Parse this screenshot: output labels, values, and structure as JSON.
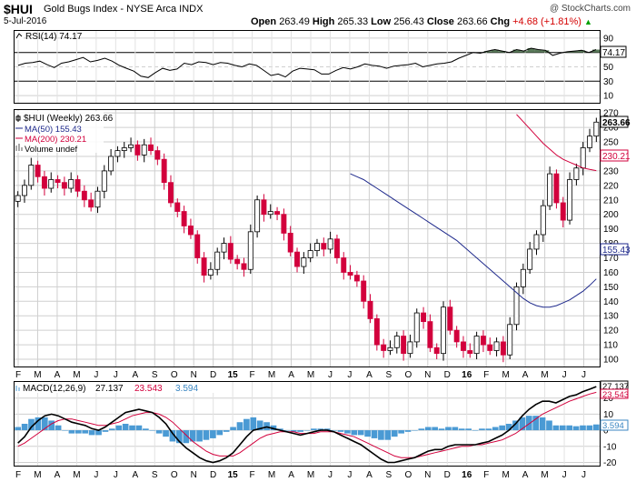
{
  "header": {
    "ticker": "$HUI",
    "name": "Gold Bugs Index - NYSE Arca INDX",
    "date": "5-Jul-2016",
    "open_label": "Open",
    "open": "263.49",
    "high_label": "High",
    "high": "265.33",
    "low_label": "Low",
    "low": "256.43",
    "close_label": "Close",
    "close": "263.66",
    "chg_label": "Chg",
    "chg": "+4.68 (+1.81%)",
    "chg_icon": "up-triangle-icon",
    "copyright": "@ StockCharts.com"
  },
  "colors": {
    "up": "#000000",
    "down": "#d2003c",
    "ma50": "#1f2a8c",
    "ma200": "#d2003c",
    "macd": "#000000",
    "signal": "#d2003c",
    "hist": "#4a9ad4",
    "rsi": "#000000"
  },
  "months": [
    "F",
    "M",
    "A",
    "M",
    "J",
    "J",
    "A",
    "S",
    "O",
    "N",
    "D",
    "15",
    "F",
    "M",
    "A",
    "M",
    "J",
    "J",
    "A",
    "S",
    "O",
    "N",
    "D",
    "16",
    "F",
    "M",
    "A",
    "M",
    "J",
    "J"
  ],
  "rsi": {
    "legend": "RSI(14) 74.17",
    "last": "74.17",
    "ticks": [
      "90",
      "70",
      "50",
      "30",
      "10"
    ],
    "levels": [
      70,
      30
    ],
    "ylim": [
      0,
      100
    ],
    "values": [
      52,
      55,
      56,
      58,
      53,
      49,
      55,
      57,
      60,
      63,
      57,
      59,
      62,
      58,
      52,
      48,
      44,
      37,
      35,
      42,
      48,
      45,
      47,
      55,
      53,
      57,
      56,
      53,
      56,
      55,
      52,
      50,
      54,
      52,
      45,
      38,
      40,
      36,
      44,
      48,
      47,
      46,
      40,
      40,
      45,
      49,
      47,
      50,
      54,
      52,
      51,
      48,
      51,
      52,
      53,
      55,
      50,
      52,
      54,
      55,
      57,
      62,
      66,
      70,
      69,
      72,
      74,
      72,
      70,
      74,
      72,
      76,
      74,
      73,
      66,
      69,
      71,
      72,
      73,
      70,
      74
    ]
  },
  "chart_data": {
    "type": "candlestick",
    "title": "$HUI (Weekly) 263.66",
    "legend": [
      {
        "name": "$HUI (Weekly) 263.66",
        "icon": "candlestick-icon"
      },
      {
        "name": "MA(50) 155.43",
        "color": "#1f2a8c"
      },
      {
        "name": "MA(200) 230.21",
        "color": "#d2003c"
      },
      {
        "name": "Volume undef",
        "icon": "volume-bar-icon"
      }
    ],
    "ylim": [
      95,
      272
    ],
    "y_ticks": [
      270,
      260,
      250,
      240,
      230,
      220,
      210,
      200,
      190,
      180,
      170,
      160,
      150,
      140,
      130,
      120,
      110,
      100
    ],
    "last_labels": {
      "price": "263.66",
      "ma200": "230.21",
      "ma50": "155.43"
    },
    "x_start": "2014-01",
    "x_end": "2016-07-05",
    "closes": [
      213,
      220,
      234,
      226,
      218,
      224,
      222,
      218,
      224,
      216,
      210,
      205,
      216,
      230,
      240,
      244,
      246,
      248,
      241,
      248,
      244,
      238,
      222,
      208,
      202,
      192,
      186,
      170,
      158,
      162,
      174,
      180,
      169,
      166,
      162,
      188,
      210,
      200,
      202,
      200,
      187,
      174,
      164,
      170,
      175,
      180,
      176,
      183,
      170,
      160,
      158,
      154,
      140,
      128,
      110,
      106,
      108,
      116,
      104,
      112,
      132,
      126,
      108,
      104,
      136,
      120,
      112,
      106,
      104,
      116,
      110,
      106,
      112,
      103,
      124,
      150,
      162,
      176,
      186,
      206,
      228,
      208,
      196,
      224,
      232,
      246,
      254,
      263.66
    ],
    "ma50": [
      null,
      null,
      null,
      null,
      null,
      null,
      null,
      null,
      null,
      null,
      null,
      null,
      null,
      null,
      null,
      null,
      null,
      null,
      null,
      null,
      null,
      null,
      null,
      null,
      null,
      null,
      null,
      null,
      null,
      null,
      null,
      null,
      null,
      null,
      null,
      null,
      null,
      null,
      null,
      null,
      null,
      null,
      null,
      null,
      null,
      null,
      null,
      null,
      null,
      null,
      228,
      226,
      224,
      221,
      218,
      215,
      212,
      209,
      206,
      203,
      200,
      197,
      194,
      191,
      188,
      185,
      182,
      178,
      174,
      170,
      166,
      162,
      158,
      154,
      150,
      146,
      142,
      139,
      137,
      136,
      136,
      137,
      139,
      141,
      144,
      147,
      151,
      155.43
    ],
    "ma200": [
      null,
      null,
      null,
      null,
      null,
      null,
      null,
      null,
      null,
      null,
      null,
      null,
      null,
      null,
      null,
      null,
      null,
      null,
      null,
      null,
      null,
      null,
      null,
      null,
      null,
      null,
      null,
      null,
      null,
      null,
      null,
      null,
      null,
      null,
      null,
      null,
      null,
      null,
      null,
      null,
      null,
      null,
      null,
      null,
      null,
      null,
      null,
      null,
      null,
      null,
      null,
      null,
      null,
      null,
      null,
      null,
      null,
      null,
      null,
      null,
      null,
      null,
      null,
      null,
      null,
      null,
      null,
      null,
      null,
      null,
      null,
      null,
      null,
      null,
      null,
      269,
      264,
      259,
      254,
      249,
      245,
      241,
      238,
      236,
      234,
      232,
      231,
      230.21
    ]
  },
  "macd": {
    "legend_label": "MACD(12,26,9)",
    "macd_val": "27.137",
    "signal_val": "23.543",
    "hist_val": "3.594",
    "ticks": [
      "20",
      "10",
      "0",
      "-10",
      "-20"
    ],
    "ylim": [
      -22,
      30
    ],
    "macd": [
      -8,
      -4,
      2,
      6,
      9,
      10,
      9,
      7,
      5,
      4,
      3,
      1,
      0,
      2,
      5,
      8,
      11,
      12,
      13,
      12,
      11,
      8,
      4,
      -2,
      -7,
      -11,
      -14,
      -17,
      -19,
      -20,
      -19,
      -17,
      -14,
      -9,
      -4,
      0,
      1,
      2,
      1,
      0,
      -1,
      -2,
      -3,
      -2,
      -1,
      0,
      0,
      -1,
      -3,
      -5,
      -7,
      -9,
      -12,
      -15,
      -18,
      -20,
      -20,
      -19,
      -18,
      -17,
      -15,
      -13,
      -12,
      -12,
      -10,
      -9,
      -9,
      -9,
      -9,
      -8,
      -7,
      -5,
      -3,
      0,
      4,
      9,
      13,
      16,
      18,
      18,
      17,
      19,
      21,
      22,
      24,
      25.5,
      27.137
    ],
    "signal": [
      -10,
      -8,
      -5,
      -2,
      1,
      4,
      6,
      7,
      7,
      6,
      5,
      4,
      3,
      3,
      4,
      5,
      7,
      9,
      10,
      11,
      11,
      10,
      8,
      5,
      1,
      -3,
      -7,
      -10,
      -13,
      -15,
      -16,
      -16,
      -16,
      -14,
      -11,
      -8,
      -5,
      -3,
      -2,
      -1,
      -1,
      -1,
      -2,
      -2,
      -2,
      -1,
      -1,
      -1,
      -2,
      -3,
      -4,
      -6,
      -8,
      -10,
      -12,
      -14,
      -16,
      -17,
      -17,
      -17,
      -16,
      -15,
      -14,
      -13,
      -12,
      -11,
      -10,
      -10,
      -9,
      -9,
      -8,
      -7,
      -6,
      -4,
      -2,
      1,
      4,
      7,
      10,
      12,
      14,
      16,
      18,
      19.5,
      21,
      22.5,
      23.543
    ]
  }
}
